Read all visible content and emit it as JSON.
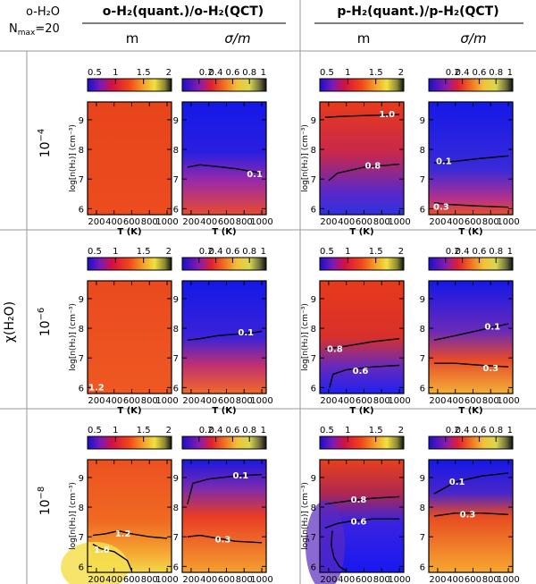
{
  "corner_label": {
    "line1": "o-H₂O",
    "line2": "N",
    "line2_sub": "max",
    "line2_rest": "=20"
  },
  "column_groups": [
    {
      "title": "o-H₂(quant.)/o-H₂(QCT)",
      "subtitles": [
        "m",
        "σ/m"
      ]
    },
    {
      "title": "p-H₂(quant.)/p-H₂(QCT)",
      "subtitles": [
        "m",
        "σ/m"
      ]
    }
  ],
  "row_axis_label": "χ(H₂O)",
  "row_labels": [
    {
      "base": "10",
      "exp": "−4"
    },
    {
      "base": "10",
      "exp": "−6"
    },
    {
      "base": "10",
      "exp": "−8"
    }
  ],
  "colors": {
    "red": "#e03318",
    "orange_red": "#f05020",
    "blue": "#1010e0",
    "purple": "#8a2bb8",
    "orange": "#f5a830",
    "yellow": "#f2e040",
    "contour": "#000000",
    "contour_label": "#ffffff",
    "grid_line": "#9a9a9a"
  },
  "chart_data": {
    "type": "heatmap",
    "description_axes": {
      "xlabel": "T (K)",
      "ylabel": "log[n(H₂)] (cm⁻³)"
    },
    "x_range": [
      100,
      1050
    ],
    "y_range": [
      5.8,
      9.6
    ],
    "x_ticks": [
      200,
      400,
      600,
      800,
      1000
    ],
    "y_ticks": [
      6,
      7,
      8,
      9
    ],
    "colorbars": {
      "m": {
        "range": [
          0.5,
          2
        ],
        "ticks": [
          "0.5",
          "1",
          "1.5",
          "2"
        ]
      },
      "sigma_over_m": {
        "range": [
          0,
          1
        ],
        "ticks": [
          "0.2",
          "0.4",
          "0.6",
          "0.8",
          "1"
        ]
      }
    },
    "panels": [
      {
        "row": 0,
        "col": 0,
        "quantity": "m",
        "contours": []
      },
      {
        "row": 0,
        "col": 1,
        "quantity": "σ/m",
        "contours": [
          {
            "level": "0.1",
            "x": [
              160,
              300,
              500,
              700,
              900,
              1000
            ],
            "y": [
              7.4,
              7.48,
              7.42,
              7.35,
              7.25,
              7.2
            ],
            "label_x": 920,
            "label_y": 7.15
          }
        ]
      },
      {
        "row": 0,
        "col": 2,
        "quantity": "m",
        "contours": [
          {
            "level": "1.0",
            "x": [
              160,
              400,
              700,
              1000
            ],
            "y": [
              9.08,
              9.12,
              9.15,
              9.18
            ],
            "label_x": 860,
            "label_y": 9.18
          },
          {
            "level": "0.8",
            "x": [
              200,
              300,
              450,
              600,
              800,
              1000
            ],
            "y": [
              6.95,
              7.2,
              7.3,
              7.4,
              7.45,
              7.5
            ],
            "label_x": 700,
            "label_y": 7.45
          }
        ]
      },
      {
        "row": 0,
        "col": 3,
        "quantity": "σ/m",
        "contours": [
          {
            "level": "0.1",
            "x": [
              160,
              400,
              700,
              1000
            ],
            "y": [
              7.55,
              7.6,
              7.7,
              7.78
            ],
            "label_x": 270,
            "label_y": 7.6
          },
          {
            "level": "0.3",
            "x": [
              160,
              300,
              600,
              1000
            ],
            "y": [
              6.2,
              6.15,
              6.1,
              6.05
            ],
            "label_x": 240,
            "label_y": 6.05
          }
        ]
      },
      {
        "row": 1,
        "col": 0,
        "quantity": "m",
        "contours": [
          {
            "level": "1.2",
            "x": [],
            "y": [],
            "label_x": 200,
            "label_y": 6.0
          }
        ]
      },
      {
        "row": 1,
        "col": 1,
        "quantity": "σ/m",
        "contours": [
          {
            "level": "0.1",
            "x": [
              160,
              300,
              500,
              700,
              900,
              1000
            ],
            "y": [
              7.6,
              7.65,
              7.75,
              7.8,
              7.85,
              7.9
            ],
            "label_x": 820,
            "label_y": 7.85
          }
        ]
      },
      {
        "row": 1,
        "col": 2,
        "quantity": "m",
        "contours": [
          {
            "level": "0.8",
            "x": [
              160,
              400,
              700,
              1000
            ],
            "y": [
              7.3,
              7.4,
              7.55,
              7.65
            ],
            "label_x": 270,
            "label_y": 7.3
          },
          {
            "level": "0.6",
            "x": [
              210,
              250,
              400,
              700,
              1000
            ],
            "y": [
              6.0,
              6.45,
              6.6,
              6.7,
              6.75
            ],
            "label_x": 560,
            "label_y": 6.55
          }
        ]
      },
      {
        "row": 1,
        "col": 3,
        "quantity": "σ/m",
        "contours": [
          {
            "level": "0.1",
            "x": [
              160,
              400,
              700,
              1000
            ],
            "y": [
              7.6,
              7.75,
              7.95,
              8.15
            ],
            "label_x": 820,
            "label_y": 8.05
          },
          {
            "level": "0.3",
            "x": [
              160,
              400,
              700,
              1000
            ],
            "y": [
              6.82,
              6.82,
              6.75,
              6.7
            ],
            "label_x": 800,
            "label_y": 6.65
          }
        ]
      },
      {
        "row": 2,
        "col": 0,
        "quantity": "m",
        "contours": [
          {
            "level": "1.2",
            "x": [
              160,
              300,
              450,
              600,
              800,
              1000
            ],
            "y": [
              7.05,
              7.1,
              7.2,
              7.1,
              7.0,
              6.95
            ],
            "label_x": 500,
            "label_y": 7.1
          },
          {
            "level": "1.6",
            "x": [
              160,
              250,
              400,
              550,
              600
            ],
            "y": [
              6.75,
              6.6,
              6.5,
              6.2,
              5.85
            ],
            "label_x": 260,
            "label_y": 6.55
          }
        ]
      },
      {
        "row": 2,
        "col": 1,
        "quantity": "σ/m",
        "contours": [
          {
            "level": "0.1",
            "x": [
              160,
              220,
              400,
              700,
              1000
            ],
            "y": [
              8.1,
              8.8,
              8.95,
              9.05,
              9.1
            ],
            "label_x": 760,
            "label_y": 9.05
          },
          {
            "level": "0.3",
            "x": [
              160,
              300,
              500,
              700,
              1000
            ],
            "y": [
              7.0,
              7.05,
              6.95,
              6.85,
              6.8
            ],
            "label_x": 560,
            "label_y": 6.9
          }
        ]
      },
      {
        "row": 2,
        "col": 2,
        "quantity": "m",
        "contours": [
          {
            "level": "0.8",
            "x": [
              160,
              400,
              700,
              1000
            ],
            "y": [
              8.1,
              8.2,
              8.3,
              8.35
            ],
            "label_x": 540,
            "label_y": 8.25
          },
          {
            "level": "0.6",
            "x": [
              160,
              300,
              500,
              700,
              1000
            ],
            "y": [
              7.3,
              7.45,
              7.55,
              7.6,
              7.6
            ],
            "label_x": 540,
            "label_y": 7.5
          },
          {
            "level": "",
            "x": [
              240,
              230,
              260,
              320,
              400
            ],
            "y": [
              7.2,
              6.7,
              6.3,
              6.0,
              5.85
            ],
            "label_x": 0,
            "label_y": 0
          }
        ]
      },
      {
        "row": 2,
        "col": 3,
        "quantity": "σ/m",
        "contours": [
          {
            "level": "0.1",
            "x": [
              160,
              400,
              700,
              1000
            ],
            "y": [
              8.45,
              8.85,
              9.05,
              9.15
            ],
            "label_x": 420,
            "label_y": 8.85
          },
          {
            "level": "0.3",
            "x": [
              160,
              400,
              700,
              1000
            ],
            "y": [
              7.7,
              7.8,
              7.8,
              7.75
            ],
            "label_x": 540,
            "label_y": 7.75
          }
        ]
      }
    ]
  }
}
